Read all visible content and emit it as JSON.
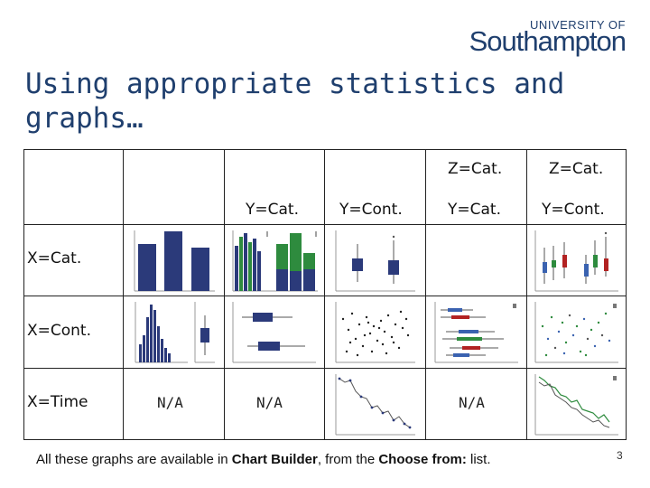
{
  "logo": {
    "top": "UNIVERSITY OF",
    "main": "Southampton"
  },
  "title": "Using appropriate statistics and graphs…",
  "table": {
    "z_headers": [
      "Z=Cat.",
      "Z=Cat."
    ],
    "y_headers": [
      "Y=Cat.",
      "Y=Cont.",
      "Y=Cat.",
      "Y=Cont."
    ],
    "rows": [
      "X=Cat.",
      "X=Cont.",
      "X=Time"
    ],
    "na": [
      "N/A",
      "N/A",
      "N/A"
    ]
  },
  "footer": {
    "prefix": "All these graphs are available in ",
    "bold1": "Chart Builder",
    "mid": ", from the ",
    "bold2": "Choose from:",
    "suffix": " list."
  },
  "page_number": "3",
  "colors": {
    "brand": "#1f3f6e",
    "bar_navy": "#2b3a7a",
    "green": "#2e8b3e",
    "red": "#b22222"
  }
}
